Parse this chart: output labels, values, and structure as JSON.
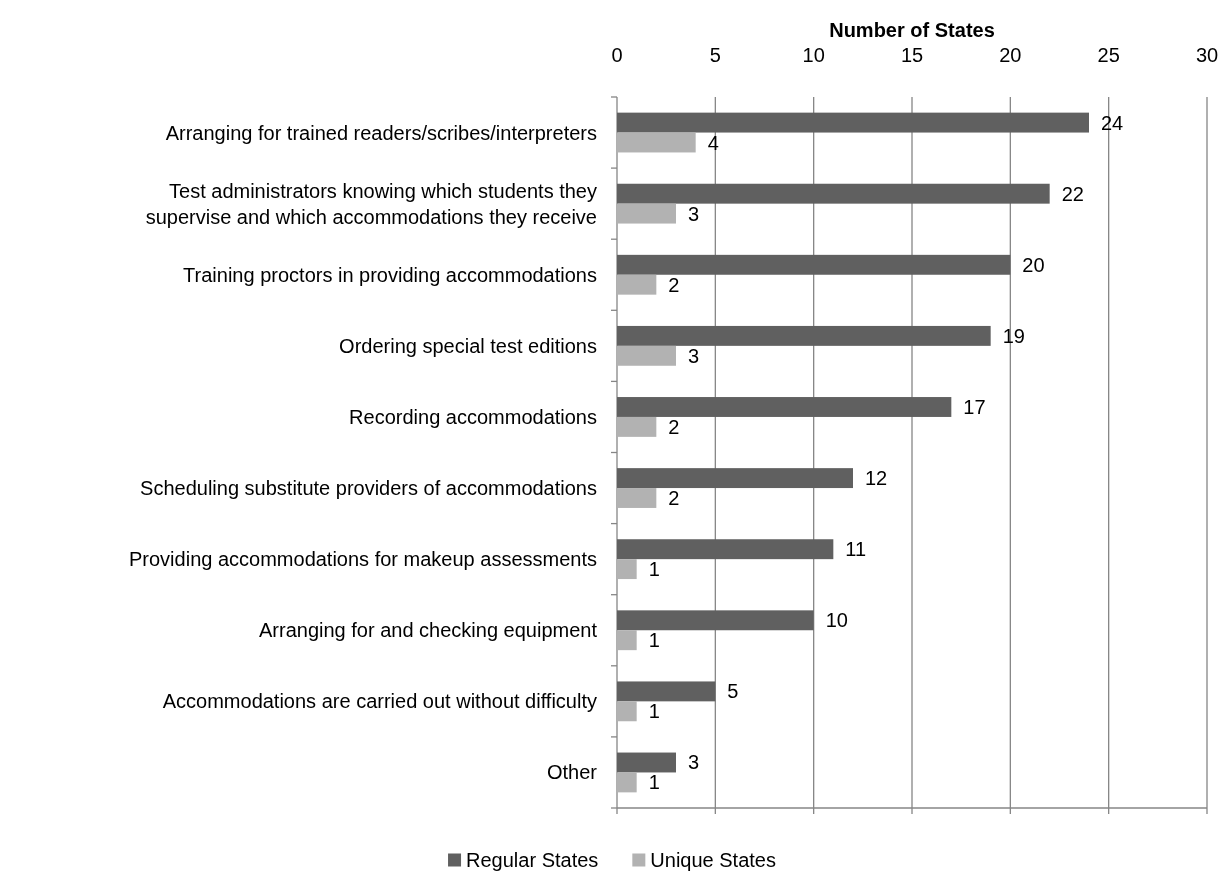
{
  "chart_data": {
    "type": "bar",
    "orientation": "horizontal",
    "xlabel": "Number of States",
    "categories": [
      "Arranging for trained readers/scribes/interpreters",
      "Test administrators knowing which students they\nsupervise and which accommodations they receive",
      "Training proctors in providing accommodations",
      "Ordering special test editions",
      "Recording accommodations",
      "Scheduling substitute providers of accommodations",
      "Providing accommodations for makeup assessments",
      "Arranging for and checking equipment",
      "Accommodations are carried out without difficulty",
      "Other"
    ],
    "series": [
      {
        "name": "Regular States",
        "color": "#606060",
        "values": [
          24,
          22,
          20,
          19,
          17,
          12,
          11,
          10,
          5,
          3
        ]
      },
      {
        "name": "Unique States",
        "color": "#b2b2b2",
        "values": [
          4,
          3,
          2,
          3,
          2,
          2,
          1,
          1,
          1,
          1
        ]
      }
    ],
    "xlim": [
      0,
      30
    ],
    "xticks": [
      0,
      5,
      10,
      15,
      20,
      25,
      30
    ],
    "grid": "x",
    "legend": "bottom",
    "data_labels": true
  }
}
